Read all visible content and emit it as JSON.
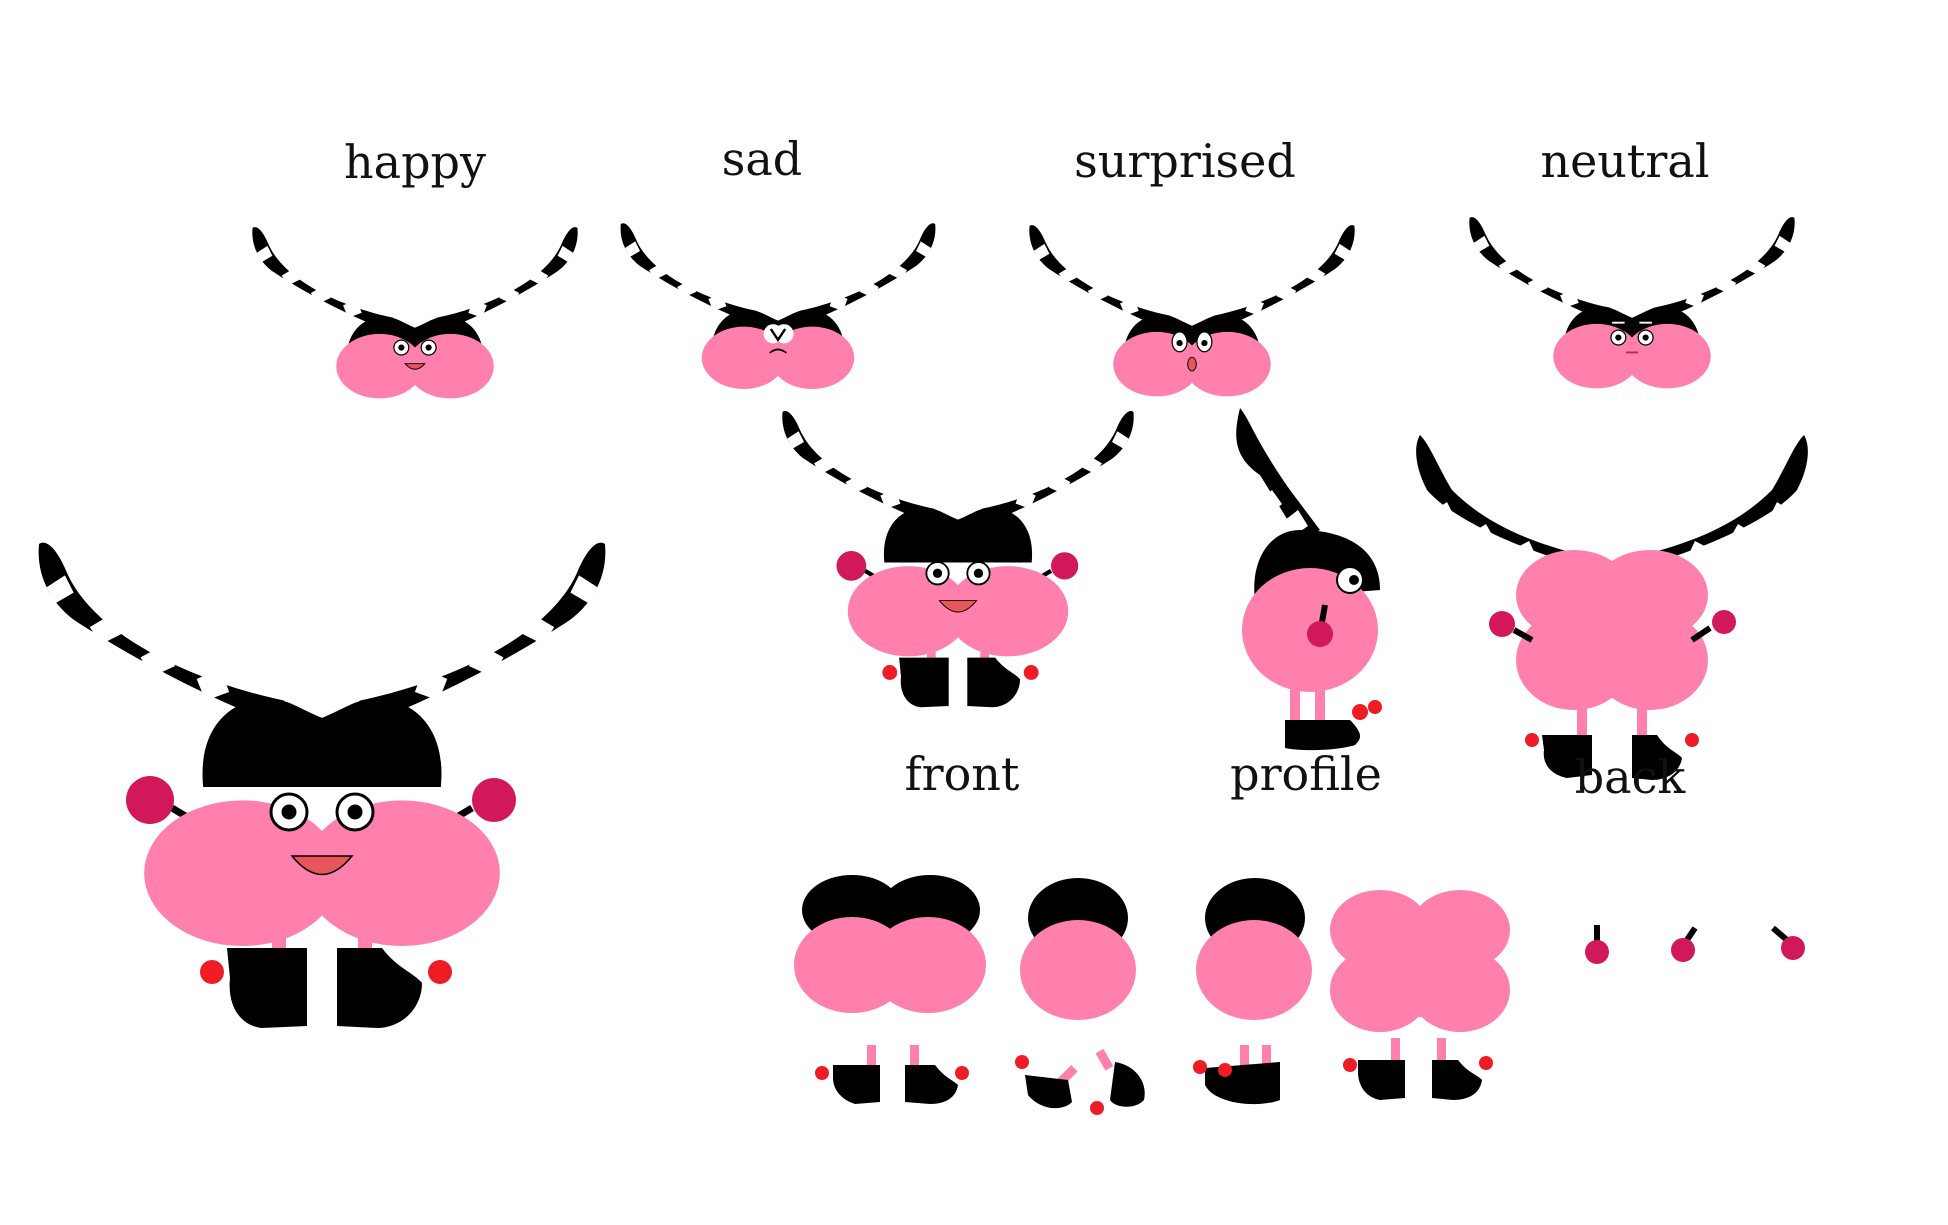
{
  "labels": {
    "happy": "happy",
    "sad": "sad",
    "surprised": "surprised",
    "neutral": "neutral",
    "front": "front",
    "profile": "profile",
    "back": "back"
  },
  "colors": {
    "black": "#000000",
    "pink": "#ff80ad",
    "hand": "#d1185a",
    "foot": "#ee1c25",
    "white": "#ffffff"
  }
}
